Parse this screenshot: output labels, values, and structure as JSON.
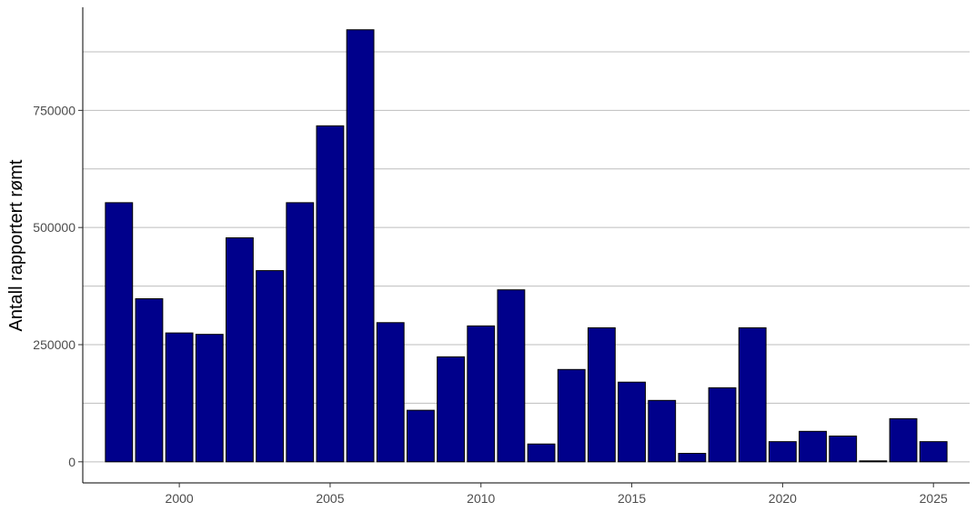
{
  "chart_data": {
    "type": "bar",
    "ylabel": "Antall rapportert rømt",
    "xlabel": "",
    "x": [
      1998,
      1999,
      2000,
      2001,
      2002,
      2003,
      2004,
      2005,
      2006,
      2007,
      2008,
      2009,
      2010,
      2011,
      2012,
      2013,
      2014,
      2015,
      2016,
      2017,
      2018,
      2019,
      2020,
      2021,
      2022,
      2023,
      2024,
      2025
    ],
    "values": [
      553000,
      348000,
      275000,
      272000,
      478000,
      408000,
      553000,
      717000,
      922000,
      297000,
      110000,
      224000,
      290000,
      367000,
      38000,
      197000,
      286000,
      170000,
      131000,
      18000,
      158000,
      286000,
      43000,
      65000,
      55000,
      2000,
      92000,
      43000
    ],
    "ylim": [
      -45000,
      970000
    ],
    "xlim": [
      1996.8,
      2026.2
    ],
    "y_ticks": [
      0,
      250000,
      500000,
      750000
    ],
    "y_tick_labels": [
      "0",
      "250000",
      "500000",
      "750000"
    ],
    "x_ticks": [
      2000,
      2005,
      2010,
      2015,
      2020,
      2025
    ],
    "x_tick_labels": [
      "2000",
      "2005",
      "2010",
      "2015",
      "2020",
      "2025"
    ],
    "grid": "horizontal",
    "colors": {
      "bar_fill": "#00008B",
      "bar_stroke": "#000000",
      "grid": "#bebebe",
      "axis": "#000000"
    }
  }
}
